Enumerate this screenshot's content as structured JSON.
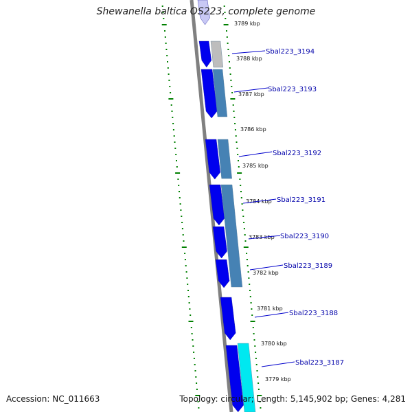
{
  "title": "Shewanella baltica OS223, complete genome",
  "footer": {
    "accession": "Accession: NC_011663",
    "summary": "Topology: circular; Length: 5,145,902 bp; Genes: 4,281"
  },
  "colors": {
    "backbone": "#808080",
    "gene_forward": "#0000ee",
    "gene_faded": "#c8c8f4",
    "gene_cog": "#4682b4",
    "gene_cog_light": "#bdbdbd",
    "gene_cog_cyan": "#00e8f0",
    "ticks": "#008000",
    "label_text": "#0000aa",
    "label_line": "#0000cc",
    "kbp_text": "#111111"
  },
  "kbp_ticks": [
    "3789 kbp",
    "3788 kbp",
    "3787 kbp",
    "3786 kbp",
    "3785 kbp",
    "3784 kbp",
    "3783 kbp",
    "3782 kbp",
    "3781 kbp",
    "3780 kbp",
    "3779 kbp"
  ],
  "gene_labels": [
    "Sbal223_3194",
    "Sbal223_3193",
    "Sbal223_3192",
    "Sbal223_3191",
    "Sbal223_3190",
    "Sbal223_3189",
    "Sbal223_3188",
    "Sbal223_3187"
  ]
}
